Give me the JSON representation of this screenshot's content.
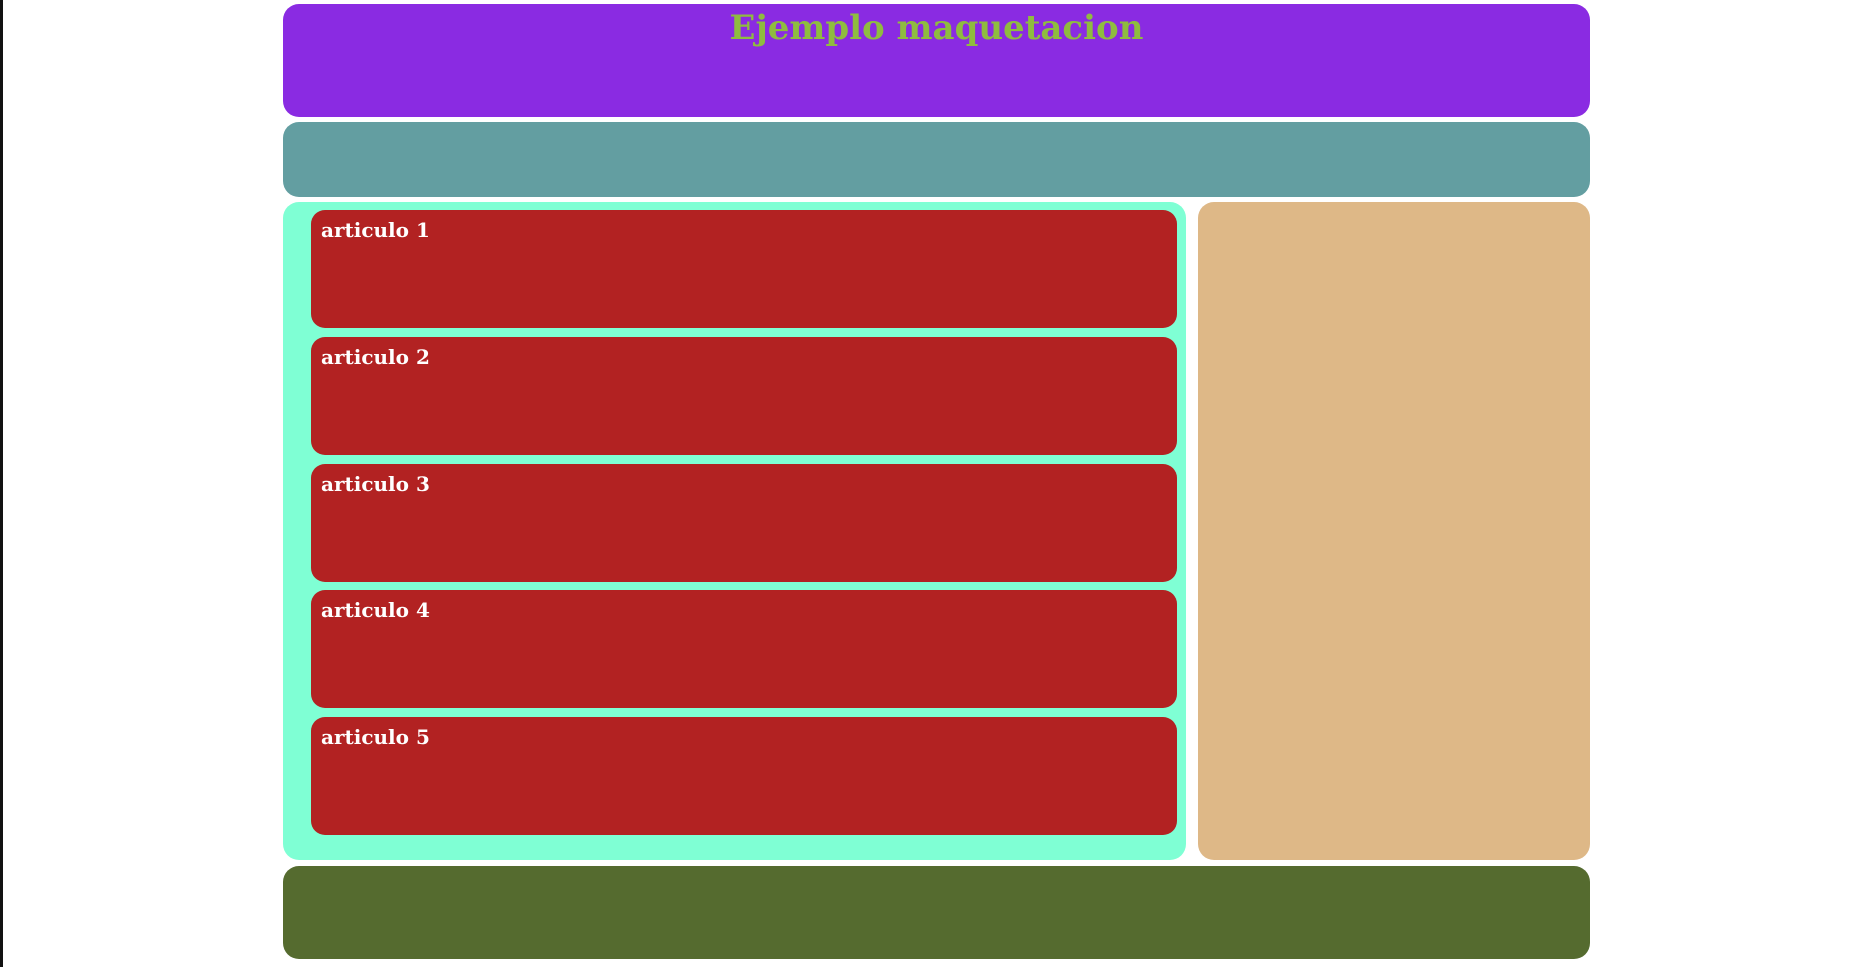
{
  "colors": {
    "header_bg": "#8a2be2",
    "title_text": "#8fbc3f",
    "nav_bg": "#639ea1",
    "section_bg": "#7fffd4",
    "article_bg": "#b22222",
    "article_text": "#ffffff",
    "aside_bg": "#deb887",
    "footer_bg": "#556b2f"
  },
  "header": {
    "title": "Ejemplo maquetacion"
  },
  "section": {
    "articles": [
      {
        "title": "articulo 1"
      },
      {
        "title": "articulo 2"
      },
      {
        "title": "articulo 3"
      },
      {
        "title": "articulo 4"
      },
      {
        "title": "articulo 5"
      }
    ]
  }
}
